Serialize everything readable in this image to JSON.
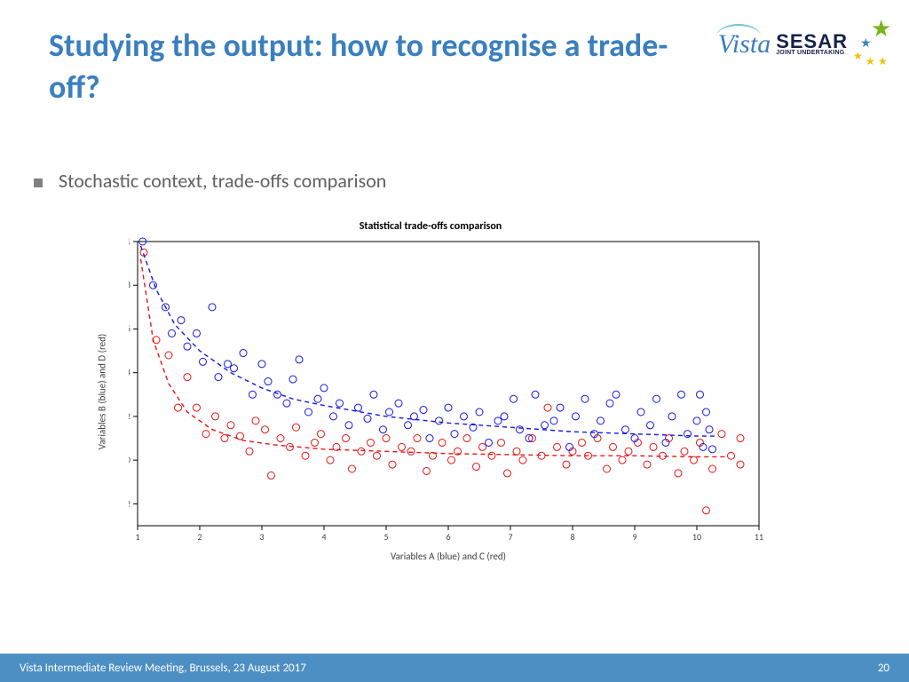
{
  "title": "Studying the output: how to recognise a trade-off?",
  "logos": {
    "vista": "Vista",
    "sesar": "SESAR",
    "sesar_sub": "JOINT UNDERTAKING"
  },
  "bullet": "Stochastic context, trade-offs comparison",
  "footer": {
    "left": "Vista Intermediate Review Meeting, Brussels, 23 August 2017",
    "page": "20"
  },
  "chart": {
    "type": "scatter",
    "title": "Statistical trade-offs comparison",
    "xlabel": "Variables A (blue) and C (red)",
    "ylabel": "Variables B (blue) and D (red)",
    "xlim": [
      1,
      11
    ],
    "ylim": [
      -0.3,
      1.0
    ],
    "xticks": [
      1,
      2,
      3,
      4,
      5,
      6,
      7,
      8,
      9,
      10,
      11
    ],
    "yticks": [
      -0.2,
      0,
      0.2,
      0.4,
      0.6,
      0.8,
      1
    ],
    "tick_fontsize": 10,
    "label_fontsize": 11,
    "title_fontsize": 12,
    "background_color": "#ffffff",
    "axis_color": "#000000",
    "marker_style": "circle_open",
    "marker_size": 4,
    "line_dash": "5,4",
    "line_width": 1.4,
    "series": {
      "blue": {
        "color": "#1515e8",
        "points": [
          [
            1.08,
            1.0
          ],
          [
            1.25,
            0.8
          ],
          [
            1.45,
            0.7
          ],
          [
            1.55,
            0.58
          ],
          [
            1.7,
            0.64
          ],
          [
            1.8,
            0.52
          ],
          [
            1.95,
            0.58
          ],
          [
            2.05,
            0.45
          ],
          [
            2.2,
            0.7
          ],
          [
            2.3,
            0.38
          ],
          [
            2.45,
            0.44
          ],
          [
            2.55,
            0.42
          ],
          [
            2.7,
            0.49
          ],
          [
            2.85,
            0.3
          ],
          [
            3.0,
            0.44
          ],
          [
            3.1,
            0.36
          ],
          [
            3.25,
            0.3
          ],
          [
            3.4,
            0.26
          ],
          [
            3.5,
            0.37
          ],
          [
            3.6,
            0.46
          ],
          [
            3.75,
            0.22
          ],
          [
            3.9,
            0.28
          ],
          [
            4.0,
            0.33
          ],
          [
            4.15,
            0.2
          ],
          [
            4.25,
            0.26
          ],
          [
            4.4,
            0.16
          ],
          [
            4.55,
            0.24
          ],
          [
            4.7,
            0.19
          ],
          [
            4.8,
            0.3
          ],
          [
            4.95,
            0.14
          ],
          [
            5.05,
            0.22
          ],
          [
            5.2,
            0.26
          ],
          [
            5.35,
            0.16
          ],
          [
            5.45,
            0.2
          ],
          [
            5.6,
            0.23
          ],
          [
            5.7,
            0.1
          ],
          [
            5.85,
            0.18
          ],
          [
            6.0,
            0.24
          ],
          [
            6.1,
            0.12
          ],
          [
            6.25,
            0.2
          ],
          [
            6.4,
            0.15
          ],
          [
            6.5,
            0.22
          ],
          [
            6.65,
            0.08
          ],
          [
            6.8,
            0.18
          ],
          [
            6.9,
            0.2
          ],
          [
            7.05,
            0.28
          ],
          [
            7.15,
            0.14
          ],
          [
            7.3,
            0.1
          ],
          [
            7.4,
            0.3
          ],
          [
            7.55,
            0.16
          ],
          [
            7.7,
            0.18
          ],
          [
            7.8,
            0.24
          ],
          [
            7.95,
            0.06
          ],
          [
            8.05,
            0.2
          ],
          [
            8.2,
            0.28
          ],
          [
            8.35,
            0.12
          ],
          [
            8.45,
            0.18
          ],
          [
            8.6,
            0.26
          ],
          [
            8.7,
            0.3
          ],
          [
            8.85,
            0.14
          ],
          [
            9.0,
            0.1
          ],
          [
            9.1,
            0.22
          ],
          [
            9.25,
            0.16
          ],
          [
            9.35,
            0.28
          ],
          [
            9.5,
            0.08
          ],
          [
            9.6,
            0.2
          ],
          [
            9.75,
            0.3
          ],
          [
            9.85,
            0.12
          ],
          [
            10.0,
            0.18
          ],
          [
            10.05,
            0.3
          ],
          [
            10.1,
            0.06
          ],
          [
            10.15,
            0.22
          ],
          [
            10.2,
            0.14
          ],
          [
            10.25,
            0.05
          ]
        ],
        "curve": [
          [
            1.05,
            0.98
          ],
          [
            1.3,
            0.78
          ],
          [
            1.6,
            0.62
          ],
          [
            2.0,
            0.5
          ],
          [
            2.5,
            0.4
          ],
          [
            3.0,
            0.33
          ],
          [
            3.5,
            0.28
          ],
          [
            4.0,
            0.25
          ],
          [
            5.0,
            0.2
          ],
          [
            6.0,
            0.17
          ],
          [
            7.0,
            0.15
          ],
          [
            8.0,
            0.13
          ],
          [
            9.0,
            0.12
          ],
          [
            10.0,
            0.11
          ],
          [
            10.3,
            0.11
          ]
        ]
      },
      "red": {
        "color": "#e81515",
        "points": [
          [
            1.1,
            0.95
          ],
          [
            1.3,
            0.55
          ],
          [
            1.5,
            0.48
          ],
          [
            1.65,
            0.24
          ],
          [
            1.8,
            0.38
          ],
          [
            1.95,
            0.24
          ],
          [
            2.1,
            0.12
          ],
          [
            2.25,
            0.2
          ],
          [
            2.4,
            0.1
          ],
          [
            2.5,
            0.16
          ],
          [
            2.65,
            0.11
          ],
          [
            2.8,
            0.04
          ],
          [
            2.9,
            0.18
          ],
          [
            3.05,
            0.14
          ],
          [
            3.15,
            -0.07
          ],
          [
            3.3,
            0.1
          ],
          [
            3.45,
            0.06
          ],
          [
            3.55,
            0.15
          ],
          [
            3.7,
            0.02
          ],
          [
            3.85,
            0.08
          ],
          [
            3.95,
            0.12
          ],
          [
            4.1,
            0.0
          ],
          [
            4.2,
            0.06
          ],
          [
            4.35,
            0.1
          ],
          [
            4.45,
            -0.04
          ],
          [
            4.6,
            0.04
          ],
          [
            4.75,
            0.08
          ],
          [
            4.85,
            0.02
          ],
          [
            5.0,
            0.1
          ],
          [
            5.1,
            -0.02
          ],
          [
            5.25,
            0.06
          ],
          [
            5.4,
            0.04
          ],
          [
            5.5,
            0.1
          ],
          [
            5.65,
            -0.05
          ],
          [
            5.75,
            0.02
          ],
          [
            5.9,
            0.08
          ],
          [
            6.05,
            0.0
          ],
          [
            6.15,
            0.04
          ],
          [
            6.3,
            0.1
          ],
          [
            6.45,
            -0.03
          ],
          [
            6.55,
            0.06
          ],
          [
            6.7,
            0.02
          ],
          [
            6.85,
            0.08
          ],
          [
            6.95,
            -0.06
          ],
          [
            7.1,
            0.04
          ],
          [
            7.2,
            0.0
          ],
          [
            7.35,
            0.1
          ],
          [
            7.5,
            0.02
          ],
          [
            7.6,
            0.24
          ],
          [
            7.75,
            0.06
          ],
          [
            7.9,
            -0.02
          ],
          [
            8.0,
            0.04
          ],
          [
            8.15,
            0.08
          ],
          [
            8.25,
            0.02
          ],
          [
            8.4,
            0.1
          ],
          [
            8.55,
            -0.04
          ],
          [
            8.65,
            0.06
          ],
          [
            8.8,
            0.0
          ],
          [
            8.9,
            0.04
          ],
          [
            9.05,
            0.08
          ],
          [
            9.2,
            -0.02
          ],
          [
            9.3,
            0.06
          ],
          [
            9.45,
            0.02
          ],
          [
            9.55,
            0.1
          ],
          [
            9.7,
            -0.06
          ],
          [
            9.8,
            0.04
          ],
          [
            9.95,
            0.0
          ],
          [
            10.05,
            0.08
          ],
          [
            10.15,
            -0.23
          ],
          [
            10.25,
            -0.04
          ],
          [
            10.4,
            0.12
          ],
          [
            10.55,
            0.02
          ],
          [
            10.7,
            0.1
          ],
          [
            10.7,
            -0.02
          ]
        ],
        "curve": [
          [
            1.05,
            0.92
          ],
          [
            1.25,
            0.55
          ],
          [
            1.5,
            0.35
          ],
          [
            1.8,
            0.22
          ],
          [
            2.2,
            0.14
          ],
          [
            2.7,
            0.09
          ],
          [
            3.2,
            0.07
          ],
          [
            4.0,
            0.05
          ],
          [
            5.0,
            0.04
          ],
          [
            6.0,
            0.03
          ],
          [
            7.0,
            0.025
          ],
          [
            8.0,
            0.02
          ],
          [
            9.0,
            0.02
          ],
          [
            10.0,
            0.015
          ],
          [
            10.5,
            0.015
          ]
        ]
      }
    }
  }
}
